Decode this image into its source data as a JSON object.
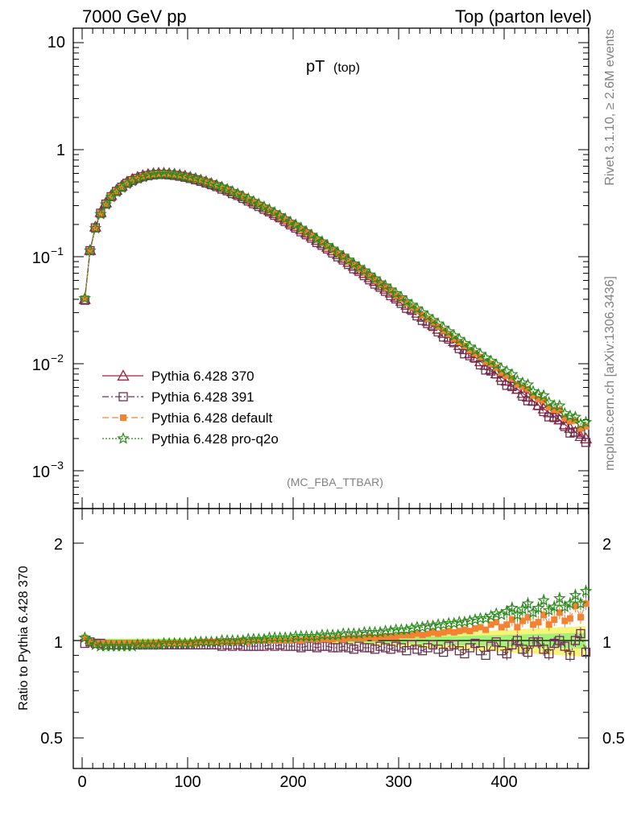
{
  "header": {
    "left": "7000 GeV pp",
    "right": "Top (parton level)"
  },
  "side_labels": {
    "version": "Rivet 3.1.10, ≥ 2.6M events",
    "source": "mcplots.cern.ch [arXiv:1306.3436]"
  },
  "colors": {
    "p370": "#a0203a",
    "p391": "#6b3050",
    "default": "#f58233",
    "proq2o": "#2a8a1a",
    "band_inner": "#a6f07a",
    "band_outer": "#f5f57a"
  },
  "chart_data": [
    {
      "type": "line",
      "title_main": "pT",
      "title_sub": "(top)",
      "watermark": "(MC_FBA_TTBAR)",
      "yscale": "log",
      "xlim": [
        -10,
        485
      ],
      "ylim": [
        0.00045,
        14
      ],
      "ytick_labels": {
        "top": [
          "10",
          "1"
        ],
        "mantissa": [
          "10",
          "10",
          "10"
        ],
        "exponent": [
          "−1",
          "−2",
          "−3"
        ]
      },
      "legend": [
        {
          "key": "p370",
          "label": "Pythia 6.428 370",
          "marker": "triangle-open"
        },
        {
          "key": "p391",
          "label": "Pythia 6.428 391",
          "marker": "square-open"
        },
        {
          "key": "default",
          "label": "Pythia 6.428 default",
          "marker": "square-filled"
        },
        {
          "key": "proq2o",
          "label": "Pythia 6.428 pro-q2o",
          "marker": "star"
        }
      ],
      "legend_position": "lower-left",
      "x": [
        2.5,
        7.5,
        12.5,
        17.5,
        22.5,
        27.5,
        32.5,
        37.5,
        42.5,
        47.5,
        52.5,
        57.5,
        62.5,
        67.5,
        72.5,
        77.5,
        82.5,
        87.5,
        92.5,
        97.5,
        102.5,
        107.5,
        112.5,
        117.5,
        122.5,
        127.5,
        132.5,
        137.5,
        142.5,
        147.5,
        152.5,
        157.5,
        162.5,
        167.5,
        172.5,
        177.5,
        182.5,
        187.5,
        192.5,
        197.5,
        202.5,
        207.5,
        212.5,
        217.5,
        222.5,
        227.5,
        232.5,
        237.5,
        242.5,
        247.5,
        252.5,
        257.5,
        262.5,
        267.5,
        272.5,
        277.5,
        282.5,
        287.5,
        292.5,
        297.5,
        302.5,
        307.5,
        312.5,
        317.5,
        322.5,
        327.5,
        332.5,
        337.5,
        342.5,
        347.5,
        352.5,
        357.5,
        362.5,
        367.5,
        372.5,
        377.5,
        382.5,
        387.5,
        392.5,
        397.5,
        402.5,
        407.5,
        412.5,
        417.5,
        422.5,
        427.5,
        432.5,
        437.5,
        442.5,
        447.5,
        452.5,
        457.5,
        462.5,
        467.5,
        472.5,
        477.5
      ],
      "series_main": {
        "name": "Pythia 6.428 370",
        "values": [
          0.04,
          0.115,
          0.19,
          0.26,
          0.32,
          0.375,
          0.42,
          0.46,
          0.5,
          0.53,
          0.555,
          0.575,
          0.59,
          0.6,
          0.605,
          0.605,
          0.6,
          0.593,
          0.582,
          0.57,
          0.555,
          0.539,
          0.522,
          0.504,
          0.485,
          0.466,
          0.446,
          0.426,
          0.405,
          0.385,
          0.365,
          0.345,
          0.326,
          0.307,
          0.289,
          0.271,
          0.254,
          0.238,
          0.222,
          0.207,
          0.193,
          0.18,
          0.167,
          0.155,
          0.143,
          0.133,
          0.123,
          0.114,
          0.105,
          0.097,
          0.089,
          0.082,
          0.076,
          0.07,
          0.064,
          0.059,
          0.054,
          0.05,
          0.046,
          0.042,
          0.0386,
          0.0354,
          0.0325,
          0.0298,
          0.0273,
          0.025,
          0.023,
          0.0211,
          0.0193,
          0.0177,
          0.0162,
          0.0149,
          0.0136,
          0.0125,
          0.0115,
          0.0105,
          0.0097,
          0.0089,
          0.0081,
          0.0075,
          0.0069,
          0.0063,
          0.0058,
          0.0053,
          0.0049,
          0.0045,
          0.0041,
          0.0038,
          0.0035,
          0.0032,
          0.003,
          0.0027,
          0.0025,
          0.0023,
          0.0021,
          0.002
        ]
      },
      "xlabel": "",
      "ylabel": ""
    },
    {
      "type": "line",
      "ylabel": "Ratio to Pythia 6.428 370",
      "xlabel": "",
      "ylim": [
        0.4,
        2.3
      ],
      "xlim": [
        -10,
        485
      ],
      "ytick_labels": [
        "2",
        "1",
        "0.5"
      ],
      "xtick_labels": [
        "0",
        "100",
        "200",
        "300",
        "400"
      ],
      "reference_value": 1,
      "series": [
        {
          "key": "p391",
          "name": "Pythia 6.428 391",
          "values": [
            0.98,
            0.99,
            0.98,
            0.98,
            0.97,
            0.97,
            0.97,
            0.97,
            0.97,
            0.97,
            0.97,
            0.97,
            0.97,
            0.97,
            0.97,
            0.97,
            0.97,
            0.97,
            0.97,
            0.97,
            0.97,
            0.97,
            0.97,
            0.97,
            0.97,
            0.97,
            0.96,
            0.97,
            0.96,
            0.97,
            0.96,
            0.96,
            0.96,
            0.96,
            0.96,
            0.97,
            0.96,
            0.97,
            0.96,
            0.96,
            0.96,
            0.95,
            0.96,
            0.96,
            0.95,
            0.96,
            0.96,
            0.95,
            0.95,
            0.96,
            0.95,
            0.94,
            0.96,
            0.95,
            0.95,
            0.94,
            0.96,
            0.95,
            0.94,
            0.96,
            0.95,
            0.93,
            0.97,
            0.94,
            0.93,
            0.95,
            0.97,
            0.94,
            0.92,
            0.96,
            0.97,
            0.93,
            0.91,
            0.95,
            0.98,
            0.93,
            0.9,
            0.96,
            0.99,
            0.93,
            0.91,
            0.97,
            1.0,
            0.94,
            0.92,
            0.99,
            0.99,
            0.94,
            0.91,
            0.98,
            1.0,
            0.96,
            0.9,
            1.0,
            1.05,
            0.92
          ]
        },
        {
          "key": "default",
          "name": "Pythia 6.428 default",
          "values": [
            1.02,
            0.99,
            0.98,
            0.98,
            0.98,
            0.98,
            0.98,
            0.98,
            0.98,
            0.98,
            0.98,
            0.98,
            0.98,
            0.98,
            0.98,
            0.98,
            0.98,
            0.98,
            0.98,
            0.98,
            0.98,
            0.98,
            0.99,
            0.99,
            0.99,
            0.99,
            0.99,
            0.99,
            0.99,
            0.99,
            1.0,
            0.99,
            1.0,
            1.0,
            1.0,
            1.0,
            1.0,
            1.0,
            1.0,
            1.0,
            1.01,
            1.0,
            1.01,
            1.01,
            1.01,
            1.01,
            1.01,
            1.01,
            1.02,
            1.01,
            1.02,
            1.02,
            1.02,
            1.02,
            1.03,
            1.02,
            1.03,
            1.03,
            1.03,
            1.03,
            1.04,
            1.04,
            1.04,
            1.05,
            1.04,
            1.05,
            1.06,
            1.05,
            1.06,
            1.07,
            1.06,
            1.07,
            1.08,
            1.07,
            1.09,
            1.1,
            1.08,
            1.12,
            1.14,
            1.1,
            1.12,
            1.16,
            1.1,
            1.15,
            1.18,
            1.12,
            1.14,
            1.2,
            1.12,
            1.16,
            1.22,
            1.15,
            1.17,
            1.28,
            1.18,
            1.3
          ]
        },
        {
          "key": "proq2o",
          "name": "Pythia 6.428 pro-q2o",
          "values": [
            1.02,
            0.99,
            0.97,
            0.96,
            0.96,
            0.96,
            0.96,
            0.96,
            0.96,
            0.96,
            0.97,
            0.97,
            0.97,
            0.97,
            0.97,
            0.98,
            0.98,
            0.98,
            0.98,
            0.98,
            0.98,
            0.99,
            0.99,
            0.99,
            0.99,
            0.99,
            1.0,
            1.0,
            1.0,
            1.0,
            1.0,
            1.01,
            1.01,
            1.01,
            1.01,
            1.02,
            1.02,
            1.02,
            1.02,
            1.02,
            1.03,
            1.03,
            1.03,
            1.03,
            1.03,
            1.04,
            1.04,
            1.04,
            1.04,
            1.05,
            1.05,
            1.05,
            1.05,
            1.06,
            1.06,
            1.06,
            1.06,
            1.07,
            1.07,
            1.08,
            1.08,
            1.08,
            1.09,
            1.1,
            1.1,
            1.11,
            1.11,
            1.12,
            1.12,
            1.13,
            1.13,
            1.14,
            1.14,
            1.15,
            1.16,
            1.17,
            1.17,
            1.19,
            1.21,
            1.2,
            1.23,
            1.26,
            1.2,
            1.25,
            1.3,
            1.22,
            1.26,
            1.33,
            1.24,
            1.27,
            1.35,
            1.27,
            1.3,
            1.38,
            1.3,
            1.42
          ]
        }
      ],
      "band_halfwidth_inner": [
        0.01,
        0.01,
        0.01,
        0.01,
        0.01,
        0.01,
        0.01,
        0.01,
        0.01,
        0.01,
        0.01,
        0.01,
        0.01,
        0.01,
        0.01,
        0.01,
        0.01,
        0.01,
        0.01,
        0.01,
        0.01,
        0.01,
        0.01,
        0.01,
        0.01,
        0.01,
        0.01,
        0.01,
        0.01,
        0.01,
        0.01,
        0.01,
        0.01,
        0.01,
        0.01,
        0.01,
        0.01,
        0.01,
        0.01,
        0.01,
        0.01,
        0.01,
        0.01,
        0.01,
        0.01,
        0.01,
        0.01,
        0.012,
        0.012,
        0.012,
        0.012,
        0.014,
        0.014,
        0.014,
        0.016,
        0.016,
        0.018,
        0.018,
        0.02,
        0.02,
        0.022,
        0.022,
        0.024,
        0.024,
        0.026,
        0.026,
        0.028,
        0.028,
        0.03,
        0.03,
        0.032,
        0.032,
        0.034,
        0.034,
        0.036,
        0.036,
        0.038,
        0.038,
        0.04,
        0.04,
        0.042,
        0.042,
        0.044,
        0.044,
        0.046,
        0.046,
        0.048,
        0.048,
        0.05,
        0.05,
        0.052,
        0.052,
        0.054,
        0.054,
        0.056,
        0.056
      ],
      "band_halfwidth_outer": [
        0.015,
        0.015,
        0.015,
        0.015,
        0.015,
        0.015,
        0.015,
        0.015,
        0.015,
        0.015,
        0.015,
        0.015,
        0.015,
        0.015,
        0.015,
        0.015,
        0.015,
        0.015,
        0.015,
        0.015,
        0.015,
        0.015,
        0.015,
        0.015,
        0.015,
        0.015,
        0.015,
        0.015,
        0.015,
        0.015,
        0.015,
        0.015,
        0.015,
        0.015,
        0.015,
        0.015,
        0.015,
        0.015,
        0.015,
        0.015,
        0.015,
        0.015,
        0.015,
        0.015,
        0.015,
        0.015,
        0.015,
        0.02,
        0.02,
        0.02,
        0.02,
        0.024,
        0.024,
        0.024,
        0.028,
        0.028,
        0.032,
        0.032,
        0.036,
        0.036,
        0.04,
        0.04,
        0.044,
        0.044,
        0.048,
        0.048,
        0.052,
        0.052,
        0.056,
        0.056,
        0.06,
        0.06,
        0.064,
        0.064,
        0.068,
        0.068,
        0.072,
        0.072,
        0.076,
        0.076,
        0.08,
        0.08,
        0.084,
        0.084,
        0.088,
        0.088,
        0.092,
        0.092,
        0.096,
        0.096,
        0.1,
        0.1,
        0.104,
        0.104,
        0.108,
        0.108
      ]
    }
  ]
}
